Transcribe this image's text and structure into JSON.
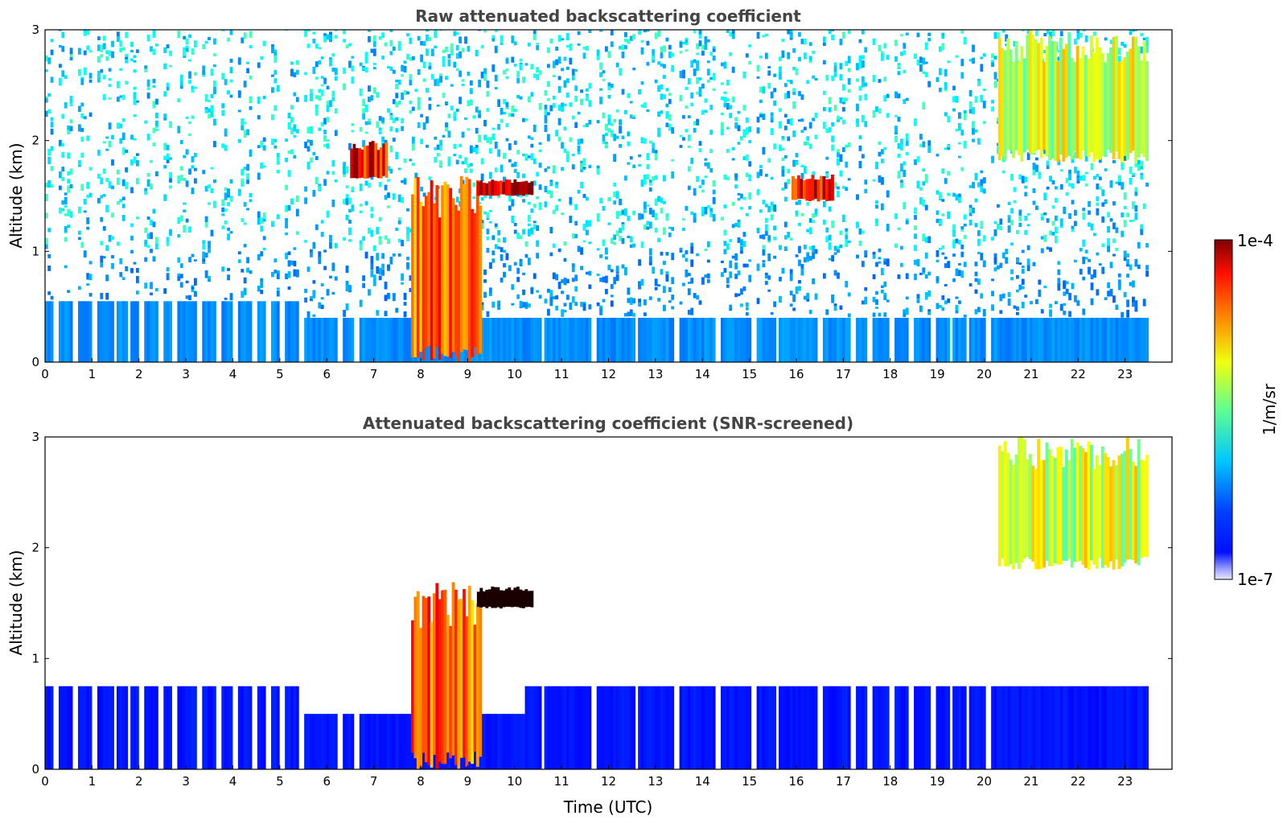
{
  "chart_data": [
    {
      "type": "heatmap",
      "title": "Raw attenuated backscattering coefficient",
      "xlabel": "",
      "ylabel": "Altitude (km)",
      "xlim": [
        0,
        24
      ],
      "ylim": [
        0,
        3
      ],
      "x_ticks": [
        "0",
        "1",
        "2",
        "3",
        "4",
        "5",
        "6",
        "7",
        "8",
        "9",
        "10",
        "11",
        "12",
        "13",
        "14",
        "15",
        "16",
        "17",
        "18",
        "19",
        "20",
        "21",
        "22",
        "23"
      ],
      "y_ticks": [
        "0",
        "1",
        "2",
        "3"
      ],
      "colorscale": "jet",
      "features": [
        {
          "name": "boundary layer aerosol",
          "t0": 0,
          "t1": 23.5,
          "z0": 0,
          "z1": 0.5,
          "level": 0.25
        },
        {
          "name": "noise floor",
          "t0": 0,
          "t1": 23.5,
          "z0": 0.5,
          "z1": 3,
          "level": 0.2
        },
        {
          "name": "precipitation core",
          "t0": 7.8,
          "t1": 9.3,
          "z0": 0,
          "z1": 1.7,
          "level": 0.8
        },
        {
          "name": "cloud layer",
          "t0": 9.2,
          "t1": 10.4,
          "z0": 1.5,
          "z1": 1.65,
          "level": 0.97
        },
        {
          "name": "cloud layer",
          "t0": 6.5,
          "t1": 7.3,
          "z0": 1.65,
          "z1": 2.0,
          "level": 0.9
        },
        {
          "name": "cloud layer",
          "t0": 15.9,
          "t1": 16.8,
          "z0": 1.45,
          "z1": 1.7,
          "level": 0.9
        },
        {
          "name": "high cloud",
          "t0": 20.3,
          "t1": 23.5,
          "z0": 1.8,
          "z1": 3,
          "level": 0.6
        }
      ]
    },
    {
      "type": "heatmap",
      "title": "Attenuated backscattering coefficient (SNR-screened)",
      "xlabel": "Time (UTC)",
      "ylabel": "Altitude (km)",
      "xlim": [
        0,
        24
      ],
      "ylim": [
        0,
        3
      ],
      "x_ticks": [
        "0",
        "1",
        "2",
        "3",
        "4",
        "5",
        "6",
        "7",
        "8",
        "9",
        "10",
        "11",
        "12",
        "13",
        "14",
        "15",
        "16",
        "17",
        "18",
        "19",
        "20",
        "21",
        "22",
        "23"
      ],
      "y_ticks": [
        "0",
        "1",
        "2",
        "3"
      ],
      "colorscale": "jet",
      "features": [
        {
          "name": "boundary layer aerosol",
          "t0": 0,
          "t1": 23.5,
          "z0": 0,
          "z1": 0.8,
          "level": 0.15
        },
        {
          "name": "precipitation core",
          "t0": 7.8,
          "t1": 9.3,
          "z0": 0,
          "z1": 1.7,
          "level": 0.8
        },
        {
          "name": "cloud layer",
          "t0": 9.2,
          "t1": 10.4,
          "z0": 1.45,
          "z1": 1.65,
          "level": 1.0
        },
        {
          "name": "high cloud",
          "t0": 20.3,
          "t1": 23.5,
          "z0": 1.8,
          "z1": 3,
          "level": 0.6
        }
      ]
    }
  ],
  "colorbar": {
    "label": "1/m/sr",
    "max_label": "1e-4",
    "min_label": "1e-7",
    "range": [
      1e-07,
      0.0001
    ],
    "scale": "log"
  }
}
